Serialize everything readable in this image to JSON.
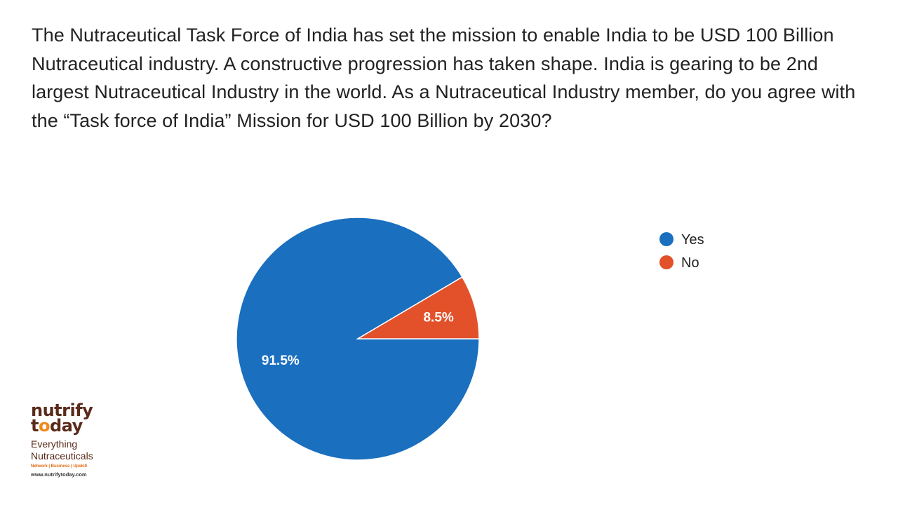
{
  "question": "The Nutraceutical Task Force of India has set the mission to enable India to be USD 100 Billion Nutraceutical industry. A constructive progression has taken shape. India is gearing to be 2nd largest Nutraceutical Industry in the world. As a Nutraceutical Industry member, do you agree with the “Task force of India” Mission for USD 100 Billion by 2030?",
  "chart_data": {
    "type": "pie",
    "title": "",
    "categories": [
      "Yes",
      "No"
    ],
    "values": [
      91.5,
      8.5
    ],
    "labels": [
      "91.5%",
      "8.5%"
    ],
    "colors": [
      "#1a6fbf",
      "#e2512a"
    ],
    "legend": "right",
    "start": "east, counterclockwise for No, clockwise for Yes"
  },
  "logo": {
    "line1": "nutrify",
    "line2_pre": "t",
    "line2_o": "o",
    "line2_post": "day",
    "tagline1": "Everything",
    "tagline2": "Nutraceuticals",
    "sub": "Network | Business | Upskill",
    "url": "www.nutrifytoday.com"
  }
}
